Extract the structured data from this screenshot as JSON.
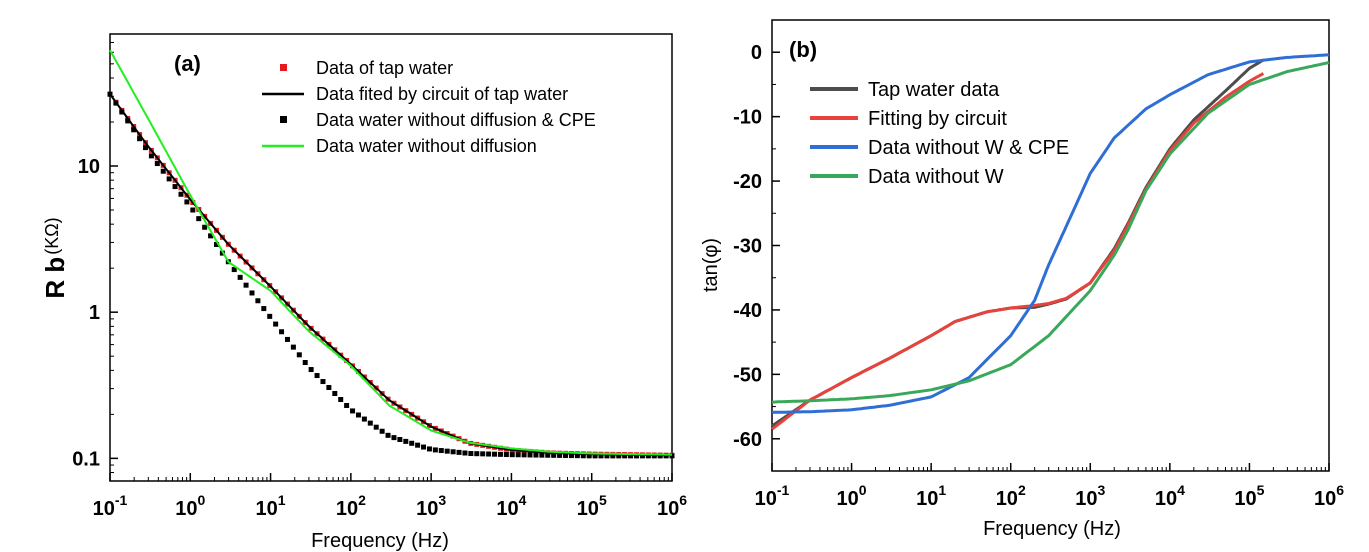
{
  "chart_data": [
    {
      "type": "line",
      "panel_label": "(a)",
      "xlabel": "Frequency (Hz)",
      "ylabel_main": "R b",
      "ylabel_unit": "(KΩ)",
      "x_scale": "log",
      "y_scale": "log",
      "xlim": [
        0.1,
        1000000
      ],
      "ylim": [
        0.07,
        80
      ],
      "x_ticks": [
        {
          "base": "10",
          "exp": "-1",
          "value": 0.1
        },
        {
          "base": "10",
          "exp": "0",
          "value": 1
        },
        {
          "base": "10",
          "exp": "1",
          "value": 10
        },
        {
          "base": "10",
          "exp": "2",
          "value": 100
        },
        {
          "base": "10",
          "exp": "3",
          "value": 1000
        },
        {
          "base": "10",
          "exp": "4",
          "value": 10000
        },
        {
          "base": "10",
          "exp": "5",
          "value": 100000
        },
        {
          "base": "10",
          "exp": "6",
          "value": 1000000
        }
      ],
      "y_ticks": [
        {
          "label": "0.1",
          "value": 0.1
        },
        {
          "label": "1",
          "value": 1
        },
        {
          "label": "10",
          "value": 10
        }
      ],
      "legend_position": "top-right",
      "series": [
        {
          "name": "Data of tap water",
          "style": "square-markers",
          "color": "#e41a1c",
          "x": [
            0.1,
            0.3,
            1,
            3,
            10,
            30,
            100,
            300,
            1000,
            3000,
            10000,
            30000,
            100000,
            300000,
            1000000
          ],
          "y": [
            31,
            13.6,
            5.9,
            2.9,
            1.5,
            0.8,
            0.44,
            0.25,
            0.165,
            0.127,
            0.114,
            0.109,
            0.107,
            0.106,
            0.105
          ]
        },
        {
          "name": "Data fited by circuit of tap water",
          "style": "line",
          "color": "#000000",
          "x": [
            0.1,
            0.3,
            1,
            3,
            10,
            30,
            100,
            300,
            1000,
            3000,
            10000,
            30000,
            100000,
            300000,
            1000000
          ],
          "y": [
            31,
            13.6,
            5.9,
            2.9,
            1.5,
            0.8,
            0.44,
            0.25,
            0.165,
            0.127,
            0.114,
            0.109,
            0.107,
            0.106,
            0.105
          ]
        },
        {
          "name": "Data water without diffusion & CPE",
          "style": "square-markers",
          "color": "#000000",
          "x": [
            0.1,
            0.3,
            1,
            3,
            10,
            30,
            100,
            300,
            1000,
            3000,
            10000,
            30000,
            100000,
            300000,
            1000000
          ],
          "y": [
            31,
            12.5,
            5.3,
            2.2,
            0.92,
            0.42,
            0.215,
            0.142,
            0.115,
            0.108,
            0.106,
            0.105,
            0.104,
            0.104,
            0.104
          ]
        },
        {
          "name": "Data water without diffusion",
          "style": "line",
          "color": "#22ee22",
          "x": [
            0.1,
            0.3,
            1,
            3,
            10,
            30,
            100,
            300,
            1000,
            3000,
            10000,
            30000,
            100000,
            300000,
            1000000
          ],
          "y": [
            62,
            21,
            6.3,
            2.2,
            1.4,
            0.74,
            0.43,
            0.23,
            0.155,
            0.128,
            0.117,
            0.111,
            0.108,
            0.107,
            0.106
          ]
        }
      ]
    },
    {
      "type": "line",
      "panel_label": "(b)",
      "xlabel": "Frequency (Hz)",
      "ylabel": "tan(φ)",
      "x_scale": "log",
      "y_scale": "linear",
      "xlim": [
        0.1,
        1000000
      ],
      "ylim": [
        -65,
        5
      ],
      "x_ticks": [
        {
          "base": "10",
          "exp": "-1",
          "value": 0.1
        },
        {
          "base": "10",
          "exp": "0",
          "value": 1
        },
        {
          "base": "10",
          "exp": "1",
          "value": 10
        },
        {
          "base": "10",
          "exp": "2",
          "value": 100
        },
        {
          "base": "10",
          "exp": "3",
          "value": 1000
        },
        {
          "base": "10",
          "exp": "4",
          "value": 10000
        },
        {
          "base": "10",
          "exp": "5",
          "value": 100000
        },
        {
          "base": "10",
          "exp": "6",
          "value": 1000000
        }
      ],
      "y_ticks": [
        {
          "label": "0",
          "value": 0
        },
        {
          "label": "-10",
          "value": -10
        },
        {
          "label": "-20",
          "value": -20
        },
        {
          "label": "-30",
          "value": -30
        },
        {
          "label": "-40",
          "value": -40
        },
        {
          "label": "-50",
          "value": -50
        },
        {
          "label": "-60",
          "value": -60
        }
      ],
      "legend_position": "top-left",
      "series": [
        {
          "name": "Tap water data",
          "style": "line",
          "color": "#4d4d4d",
          "x": [
            0.1,
            0.3,
            1,
            3,
            10,
            20,
            50,
            100,
            200,
            300,
            500,
            1000,
            2000,
            3000,
            5000,
            10000,
            20000,
            50000,
            100000,
            150000
          ],
          "y": [
            -58,
            -54,
            -50.5,
            -47.5,
            -44,
            -41.8,
            -40.3,
            -39.7,
            -39.6,
            -39.1,
            -38.3,
            -35.8,
            -30.5,
            -26.5,
            -21,
            -15,
            -10.5,
            -6,
            -2.5,
            -1.2
          ]
        },
        {
          "name": "Fitting by circuit",
          "style": "line",
          "color": "#e8423c",
          "x": [
            0.1,
            0.3,
            1,
            3,
            10,
            20,
            50,
            100,
            200,
            300,
            500,
            1000,
            2000,
            3000,
            5000,
            10000,
            20000,
            50000,
            100000,
            150000
          ],
          "y": [
            -58.5,
            -54,
            -50.5,
            -47.5,
            -44,
            -41.8,
            -40.3,
            -39.7,
            -39.3,
            -39,
            -38.2,
            -35.8,
            -30.8,
            -26.8,
            -21.3,
            -15.3,
            -11,
            -7,
            -4.5,
            -3.3
          ]
        },
        {
          "name": "Data without W & CPE",
          "style": "line",
          "color": "#2f6ed4",
          "x": [
            0.1,
            0.3,
            1,
            3,
            10,
            30,
            100,
            200,
            300,
            500,
            1000,
            2000,
            5000,
            10000,
            30000,
            100000,
            300000,
            1000000
          ],
          "y": [
            -55.9,
            -55.8,
            -55.5,
            -54.8,
            -53.5,
            -50.5,
            -44,
            -38.5,
            -33,
            -27,
            -18.8,
            -13.3,
            -8.8,
            -6.6,
            -3.5,
            -1.5,
            -0.8,
            -0.4
          ]
        },
        {
          "name": "Data without W",
          "style": "line",
          "color": "#3aa85a",
          "x": [
            0.1,
            0.3,
            1,
            3,
            10,
            30,
            100,
            300,
            1000,
            2000,
            3000,
            5000,
            10000,
            30000,
            100000,
            300000,
            1000000
          ],
          "y": [
            -54.3,
            -54.1,
            -53.8,
            -53.3,
            -52.4,
            -51,
            -48.5,
            -44,
            -37,
            -31.5,
            -27.5,
            -21.5,
            -15.8,
            -9.5,
            -5,
            -3,
            -1.6
          ]
        }
      ]
    }
  ]
}
